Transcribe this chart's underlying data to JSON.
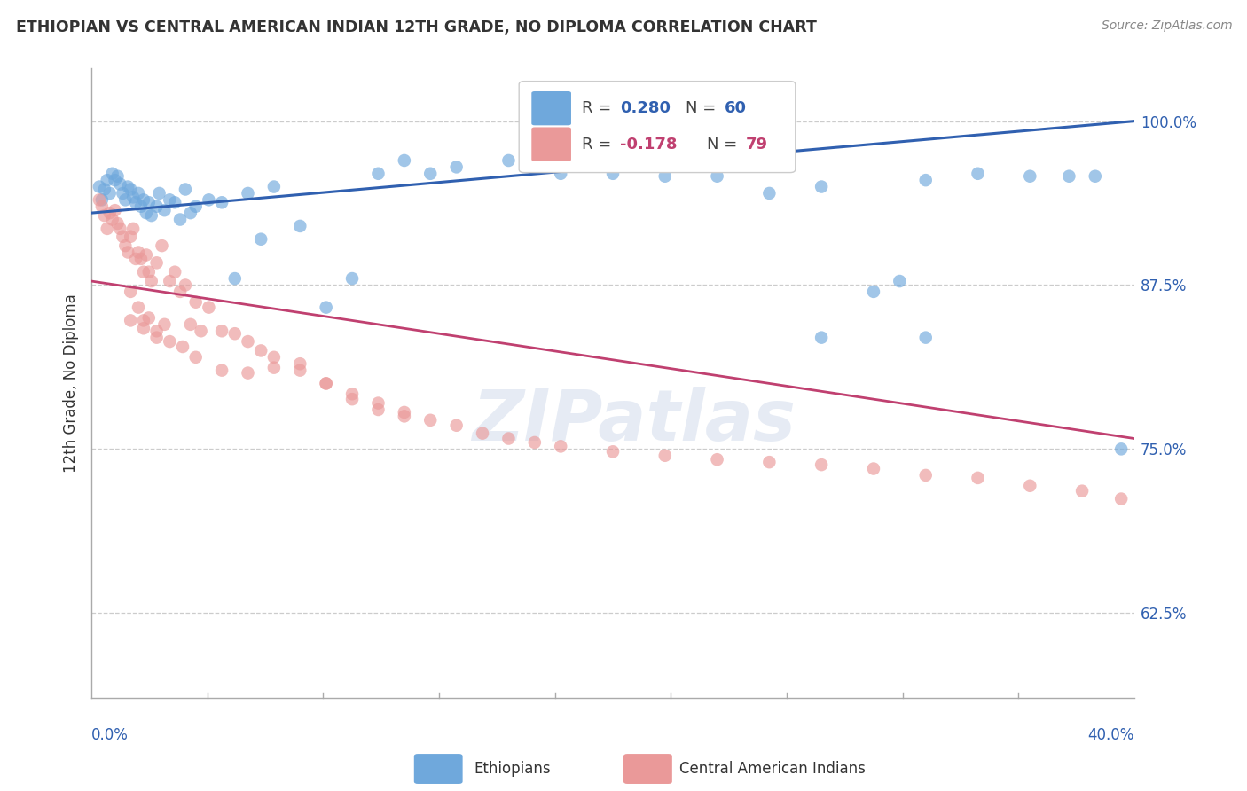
{
  "title": "ETHIOPIAN VS CENTRAL AMERICAN INDIAN 12TH GRADE, NO DIPLOMA CORRELATION CHART",
  "source": "Source: ZipAtlas.com",
  "ylabel": "12th Grade, No Diploma",
  "ytick_labels": [
    "100.0%",
    "87.5%",
    "75.0%",
    "62.5%"
  ],
  "ytick_vals": [
    1.0,
    0.875,
    0.75,
    0.625
  ],
  "xmin": 0.0,
  "xmax": 0.4,
  "ymin": 0.56,
  "ymax": 1.04,
  "blue_line_y0": 0.93,
  "blue_line_y1": 1.0,
  "pink_line_y0": 0.878,
  "pink_line_y1": 0.758,
  "blue_color": "#6fa8dc",
  "pink_color": "#ea9999",
  "blue_line_color": "#3060b0",
  "pink_line_color": "#c04070",
  "background_color": "#ffffff",
  "watermark": "ZIPatlas",
  "blue_scatter_x": [
    0.003,
    0.004,
    0.005,
    0.006,
    0.007,
    0.008,
    0.009,
    0.01,
    0.011,
    0.012,
    0.013,
    0.014,
    0.015,
    0.016,
    0.017,
    0.018,
    0.019,
    0.02,
    0.021,
    0.022,
    0.023,
    0.025,
    0.026,
    0.028,
    0.03,
    0.032,
    0.034,
    0.036,
    0.038,
    0.04,
    0.045,
    0.05,
    0.055,
    0.06,
    0.065,
    0.07,
    0.08,
    0.09,
    0.1,
    0.11,
    0.12,
    0.13,
    0.14,
    0.16,
    0.18,
    0.2,
    0.22,
    0.24,
    0.26,
    0.28,
    0.3,
    0.31,
    0.32,
    0.34,
    0.36,
    0.375,
    0.385,
    0.28,
    0.32,
    0.395
  ],
  "blue_scatter_y": [
    0.95,
    0.94,
    0.948,
    0.955,
    0.945,
    0.96,
    0.955,
    0.958,
    0.952,
    0.945,
    0.94,
    0.95,
    0.948,
    0.942,
    0.938,
    0.945,
    0.935,
    0.94,
    0.93,
    0.938,
    0.928,
    0.935,
    0.945,
    0.932,
    0.94,
    0.938,
    0.925,
    0.948,
    0.93,
    0.935,
    0.94,
    0.938,
    0.88,
    0.945,
    0.91,
    0.95,
    0.92,
    0.858,
    0.88,
    0.96,
    0.97,
    0.96,
    0.965,
    0.97,
    0.96,
    0.96,
    0.958,
    0.958,
    0.945,
    0.95,
    0.87,
    0.878,
    0.955,
    0.96,
    0.958,
    0.958,
    0.958,
    0.835,
    0.835,
    0.75
  ],
  "pink_scatter_x": [
    0.003,
    0.004,
    0.005,
    0.006,
    0.007,
    0.008,
    0.009,
    0.01,
    0.011,
    0.012,
    0.013,
    0.014,
    0.015,
    0.016,
    0.017,
    0.018,
    0.019,
    0.02,
    0.021,
    0.022,
    0.023,
    0.025,
    0.027,
    0.03,
    0.032,
    0.034,
    0.036,
    0.038,
    0.04,
    0.042,
    0.045,
    0.05,
    0.055,
    0.06,
    0.065,
    0.07,
    0.08,
    0.09,
    0.1,
    0.11,
    0.12,
    0.13,
    0.14,
    0.15,
    0.16,
    0.17,
    0.18,
    0.2,
    0.22,
    0.24,
    0.26,
    0.28,
    0.3,
    0.32,
    0.34,
    0.36,
    0.38,
    0.395,
    0.05,
    0.06,
    0.07,
    0.08,
    0.09,
    0.1,
    0.11,
    0.12,
    0.02,
    0.025,
    0.03,
    0.035,
    0.04,
    0.015,
    0.018,
    0.022,
    0.028,
    0.015,
    0.02,
    0.025
  ],
  "pink_scatter_y": [
    0.94,
    0.935,
    0.928,
    0.918,
    0.93,
    0.925,
    0.932,
    0.922,
    0.918,
    0.912,
    0.905,
    0.9,
    0.912,
    0.918,
    0.895,
    0.9,
    0.895,
    0.885,
    0.898,
    0.885,
    0.878,
    0.892,
    0.905,
    0.878,
    0.885,
    0.87,
    0.875,
    0.845,
    0.862,
    0.84,
    0.858,
    0.84,
    0.838,
    0.832,
    0.825,
    0.82,
    0.81,
    0.8,
    0.792,
    0.785,
    0.778,
    0.772,
    0.768,
    0.762,
    0.758,
    0.755,
    0.752,
    0.748,
    0.745,
    0.742,
    0.74,
    0.738,
    0.735,
    0.73,
    0.728,
    0.722,
    0.718,
    0.712,
    0.81,
    0.808,
    0.812,
    0.815,
    0.8,
    0.788,
    0.78,
    0.775,
    0.848,
    0.84,
    0.832,
    0.828,
    0.82,
    0.87,
    0.858,
    0.85,
    0.845,
    0.848,
    0.842,
    0.835
  ]
}
